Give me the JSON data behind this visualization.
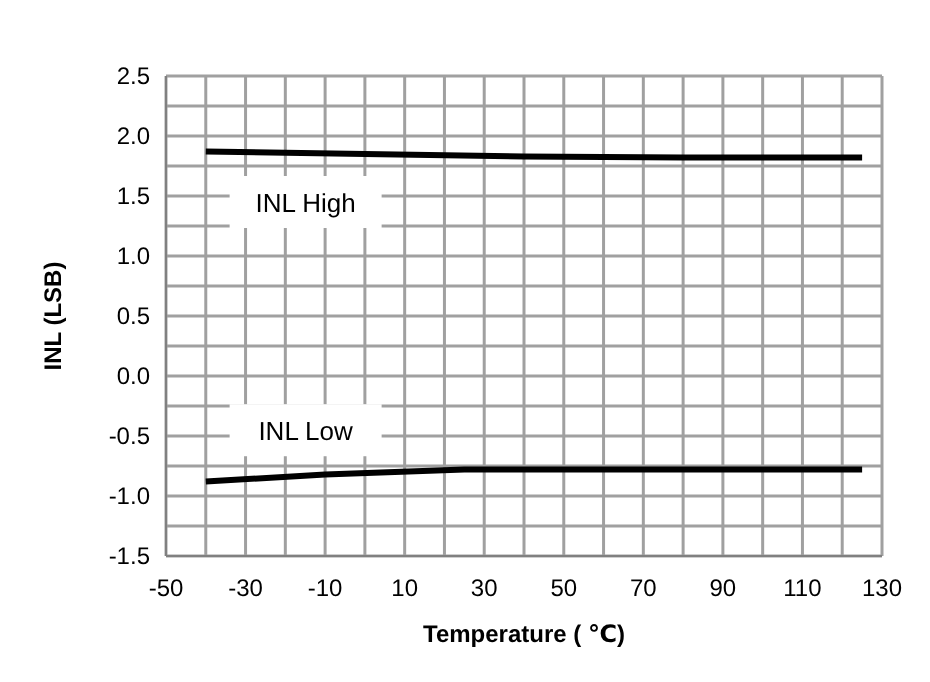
{
  "chart_data": {
    "type": "line",
    "xlabel": "Temperature ( ℃)",
    "ylabel": "INL (LSB)",
    "xlim": [
      -50,
      130
    ],
    "xticks": [
      -50,
      {
        "value": -40,
        "label": null
      },
      -30,
      {
        "value": -20,
        "label": null
      },
      -10,
      {
        "value": 0,
        "label": null
      },
      10,
      {
        "value": 20,
        "label": null
      },
      30,
      {
        "value": 40,
        "label": null
      },
      50,
      {
        "value": 60,
        "label": null
      },
      70,
      {
        "value": 80,
        "label": null
      },
      90,
      {
        "value": 100,
        "label": null
      },
      110,
      {
        "value": 120,
        "label": null
      },
      130
    ],
    "ylim": [
      -1.5,
      2.5
    ],
    "yticks": [
      -1.5,
      {
        "value": -1.25,
        "label": null
      },
      "-1.0",
      {
        "value": -0.75,
        "label": null
      },
      -0.5,
      {
        "value": -0.25,
        "label": null
      },
      "0.0",
      {
        "value": 0.25,
        "label": null
      },
      0.5,
      {
        "value": 0.75,
        "label": null
      },
      "1.0",
      {
        "value": 1.25,
        "label": null
      },
      1.5,
      {
        "value": 1.75,
        "label": null
      },
      "2.0",
      {
        "value": 2.25,
        "label": null
      },
      2.5
    ],
    "grid": true,
    "marker": "none",
    "line_style": "solid",
    "series": [
      {
        "color": "#000000",
        "x": [
          -40,
          0,
          40,
          80,
          125
        ],
        "values": [
          1.87,
          1.85,
          1.83,
          1.82,
          1.82
        ]
      },
      {
        "color": "#000000",
        "x": [
          -40,
          -10,
          25,
          80,
          125
        ],
        "values": [
          -0.88,
          -0.82,
          -0.78,
          -0.78,
          -0.78
        ]
      }
    ],
    "annotations": [
      "INL High",
      "INL Low"
    ]
  }
}
